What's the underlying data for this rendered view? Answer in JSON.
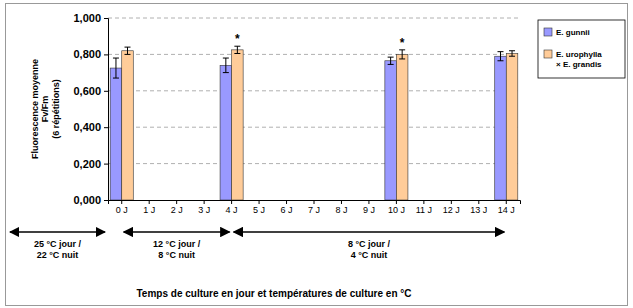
{
  "chart_data": {
    "type": "bar",
    "y_label": [
      "Fluorescence moyenne",
      "Fv/Fm",
      "(6 répétitions)"
    ],
    "x_label": "Temps de culture en jour et températures de culture en °C",
    "categories": [
      "0 J",
      "1 J",
      "2 J",
      "3 J",
      "4 J",
      "5 J",
      "6 J",
      "7 J",
      "8 J",
      "9 J",
      "10 J",
      "11 J",
      "12 J",
      "13 J",
      "14 J"
    ],
    "series": [
      {
        "name": "E. gunnii",
        "color": "#9999ff",
        "values": [
          0.725,
          null,
          null,
          null,
          0.74,
          null,
          null,
          null,
          null,
          null,
          0.765,
          null,
          null,
          null,
          0.79
        ],
        "errors": [
          0.055,
          null,
          null,
          null,
          0.04,
          null,
          null,
          null,
          null,
          null,
          0.02,
          null,
          null,
          null,
          0.025
        ]
      },
      {
        "name": "E. urophylla × E. grandis",
        "color": "#ffcc99",
        "values": [
          0.82,
          null,
          null,
          null,
          0.825,
          null,
          null,
          null,
          null,
          null,
          0.8,
          null,
          null,
          null,
          0.805
        ],
        "errors": [
          0.02,
          null,
          null,
          null,
          0.02,
          null,
          null,
          null,
          null,
          null,
          0.025,
          null,
          null,
          null,
          0.015
        ]
      }
    ],
    "ylim": [
      0,
      1
    ],
    "yticks": [
      {
        "value": 0,
        "label": "0,000"
      },
      {
        "value": 0.2,
        "label": "0,200"
      },
      {
        "value": 0.4,
        "label": "0,400"
      },
      {
        "value": 0.6,
        "label": "0,600"
      },
      {
        "value": 0.8,
        "label": "0,800"
      },
      {
        "value": 1,
        "label": "1,000"
      }
    ],
    "grid": true,
    "legend": "right",
    "annotations": [
      {
        "text": "*",
        "category": "4 J",
        "series": "E. urophylla × E. grandis"
      },
      {
        "text": "*",
        "category": "10 J",
        "series": "E. urophylla × E. grandis"
      }
    ],
    "periods": [
      {
        "text": [
          "25 °C jour /",
          "22 °C nuit"
        ],
        "start": null,
        "end": "0 J"
      },
      {
        "text": [
          "12 °C jour /",
          "8 °C nuit"
        ],
        "start": "0 J",
        "end": "4 J"
      },
      {
        "text": [
          "8 °C jour /",
          "4 °C nuit"
        ],
        "start": "4 J",
        "end": "14 J"
      }
    ]
  }
}
